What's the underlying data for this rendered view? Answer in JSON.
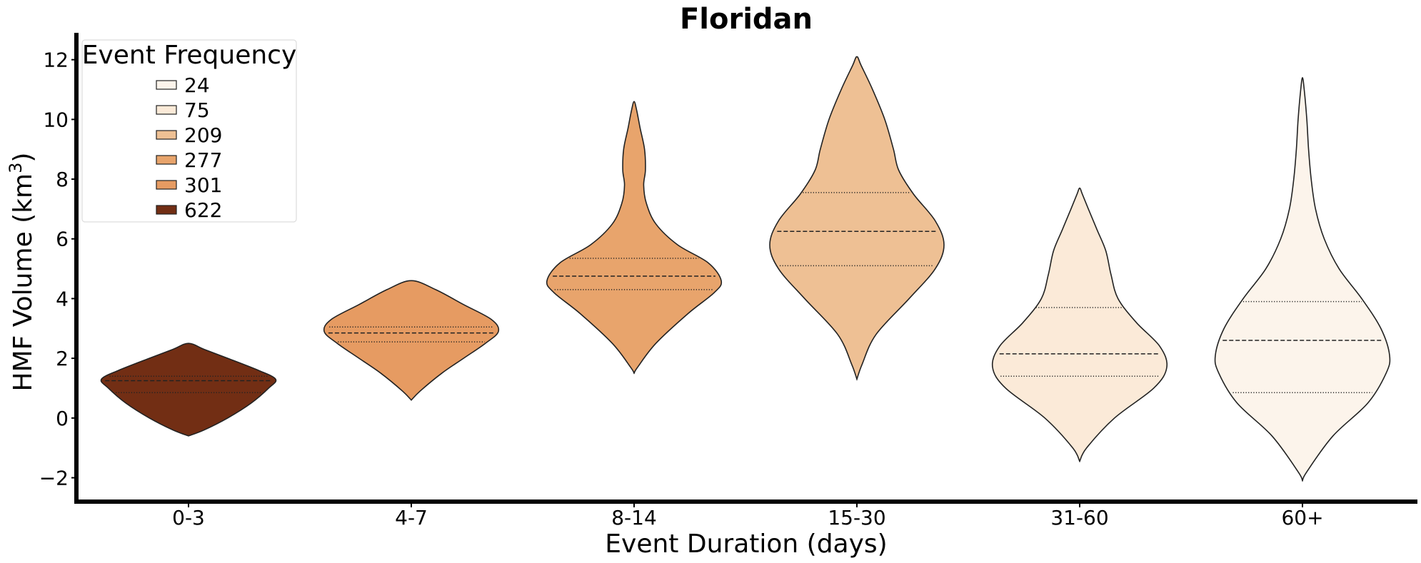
{
  "chart_data": {
    "type": "violin",
    "title": "Floridan",
    "xlabel": "Event Duration (days)",
    "ylabel_main": "HMF Volume (km",
    "ylabel_sup": "3",
    "ylabel_close": ")",
    "ylim": [
      -2.8,
      12.9
    ],
    "yticks": [
      -2,
      0,
      2,
      4,
      6,
      8,
      10,
      12
    ],
    "ytick_labels": [
      "−2",
      "0",
      "2",
      "4",
      "6",
      "8",
      "10",
      "12"
    ],
    "categories": [
      "0-3",
      "4-7",
      "8-14",
      "15-30",
      "31-60",
      "60+"
    ],
    "legend": {
      "title": "Event Frequency",
      "placement": "upper-left",
      "entries": [
        {
          "label": "24",
          "color": "#fcf4eb"
        },
        {
          "label": "75",
          "color": "#fbead8"
        },
        {
          "label": "209",
          "color": "#eec094"
        },
        {
          "label": "277",
          "color": "#e8a46c"
        },
        {
          "label": "301",
          "color": "#e69b62"
        },
        {
          "label": "622",
          "color": "#722e14"
        }
      ]
    },
    "violins": [
      {
        "category": "0-3",
        "frequency": 622,
        "color": "#722e14",
        "min": -0.6,
        "max": 2.5,
        "q1": 0.85,
        "median": 1.25,
        "q3": 1.4,
        "profile": [
          [
            -0.6,
            0.0
          ],
          [
            -0.4,
            0.18
          ],
          [
            0.0,
            0.45
          ],
          [
            0.5,
            0.72
          ],
          [
            1.0,
            0.92
          ],
          [
            1.3,
            1.0
          ],
          [
            1.6,
            0.8
          ],
          [
            2.0,
            0.45
          ],
          [
            2.3,
            0.18
          ],
          [
            2.5,
            0.0
          ]
        ]
      },
      {
        "category": "4-7",
        "frequency": 301,
        "color": "#e69b62",
        "min": 0.6,
        "max": 4.6,
        "q1": 2.55,
        "median": 2.85,
        "q3": 3.05,
        "profile": [
          [
            0.6,
            0.0
          ],
          [
            0.9,
            0.1
          ],
          [
            1.5,
            0.35
          ],
          [
            2.0,
            0.6
          ],
          [
            2.5,
            0.85
          ],
          [
            2.9,
            1.0
          ],
          [
            3.3,
            0.92
          ],
          [
            3.8,
            0.6
          ],
          [
            4.3,
            0.28
          ],
          [
            4.6,
            0.0
          ]
        ]
      },
      {
        "category": "8-14",
        "frequency": 277,
        "color": "#e8a46c",
        "min": 1.5,
        "max": 10.6,
        "q1": 4.3,
        "median": 4.75,
        "q3": 5.35,
        "profile": [
          [
            1.5,
            0.0
          ],
          [
            1.7,
            0.04
          ],
          [
            2.5,
            0.25
          ],
          [
            3.5,
            0.62
          ],
          [
            4.2,
            0.92
          ],
          [
            4.6,
            1.0
          ],
          [
            5.2,
            0.85
          ],
          [
            5.8,
            0.5
          ],
          [
            6.5,
            0.25
          ],
          [
            7.2,
            0.14
          ],
          [
            7.8,
            0.11
          ],
          [
            8.3,
            0.13
          ],
          [
            9.0,
            0.12
          ],
          [
            9.7,
            0.07
          ],
          [
            10.3,
            0.03
          ],
          [
            10.6,
            0.0
          ]
        ]
      },
      {
        "category": "15-30",
        "frequency": 209,
        "color": "#eec094",
        "min": 1.3,
        "max": 12.1,
        "q1": 5.1,
        "median": 6.25,
        "q3": 7.55,
        "profile": [
          [
            1.3,
            0.0
          ],
          [
            1.8,
            0.06
          ],
          [
            2.8,
            0.22
          ],
          [
            4.0,
            0.6
          ],
          [
            5.0,
            0.9
          ],
          [
            5.8,
            1.0
          ],
          [
            6.6,
            0.9
          ],
          [
            7.5,
            0.65
          ],
          [
            8.3,
            0.48
          ],
          [
            9.0,
            0.42
          ],
          [
            10.0,
            0.32
          ],
          [
            11.0,
            0.18
          ],
          [
            11.8,
            0.05
          ],
          [
            12.1,
            0.0
          ]
        ]
      },
      {
        "category": "31-60",
        "frequency": 75,
        "color": "#fbead8",
        "min": -1.45,
        "max": 7.7,
        "q1": 1.4,
        "median": 2.15,
        "q3": 3.7,
        "profile": [
          [
            -1.45,
            0.0
          ],
          [
            -1.0,
            0.08
          ],
          [
            0.0,
            0.4
          ],
          [
            1.0,
            0.85
          ],
          [
            1.7,
            1.0
          ],
          [
            2.4,
            0.92
          ],
          [
            3.2,
            0.65
          ],
          [
            4.0,
            0.44
          ],
          [
            4.8,
            0.36
          ],
          [
            5.6,
            0.3
          ],
          [
            6.3,
            0.2
          ],
          [
            7.0,
            0.1
          ],
          [
            7.5,
            0.03
          ],
          [
            7.7,
            0.0
          ]
        ]
      },
      {
        "category": "60+",
        "frequency": 24,
        "color": "#fcf4eb",
        "min": -2.1,
        "max": 11.4,
        "q1": 0.85,
        "median": 2.6,
        "q3": 3.9,
        "profile": [
          [
            -2.1,
            0.0
          ],
          [
            -1.8,
            0.05
          ],
          [
            -0.6,
            0.35
          ],
          [
            0.5,
            0.75
          ],
          [
            1.5,
            0.96
          ],
          [
            2.1,
            1.0
          ],
          [
            3.0,
            0.9
          ],
          [
            4.0,
            0.68
          ],
          [
            5.0,
            0.42
          ],
          [
            6.0,
            0.25
          ],
          [
            7.0,
            0.15
          ],
          [
            8.0,
            0.1
          ],
          [
            9.0,
            0.07
          ],
          [
            10.0,
            0.05
          ],
          [
            11.0,
            0.02
          ],
          [
            11.4,
            0.0
          ]
        ]
      }
    ]
  }
}
